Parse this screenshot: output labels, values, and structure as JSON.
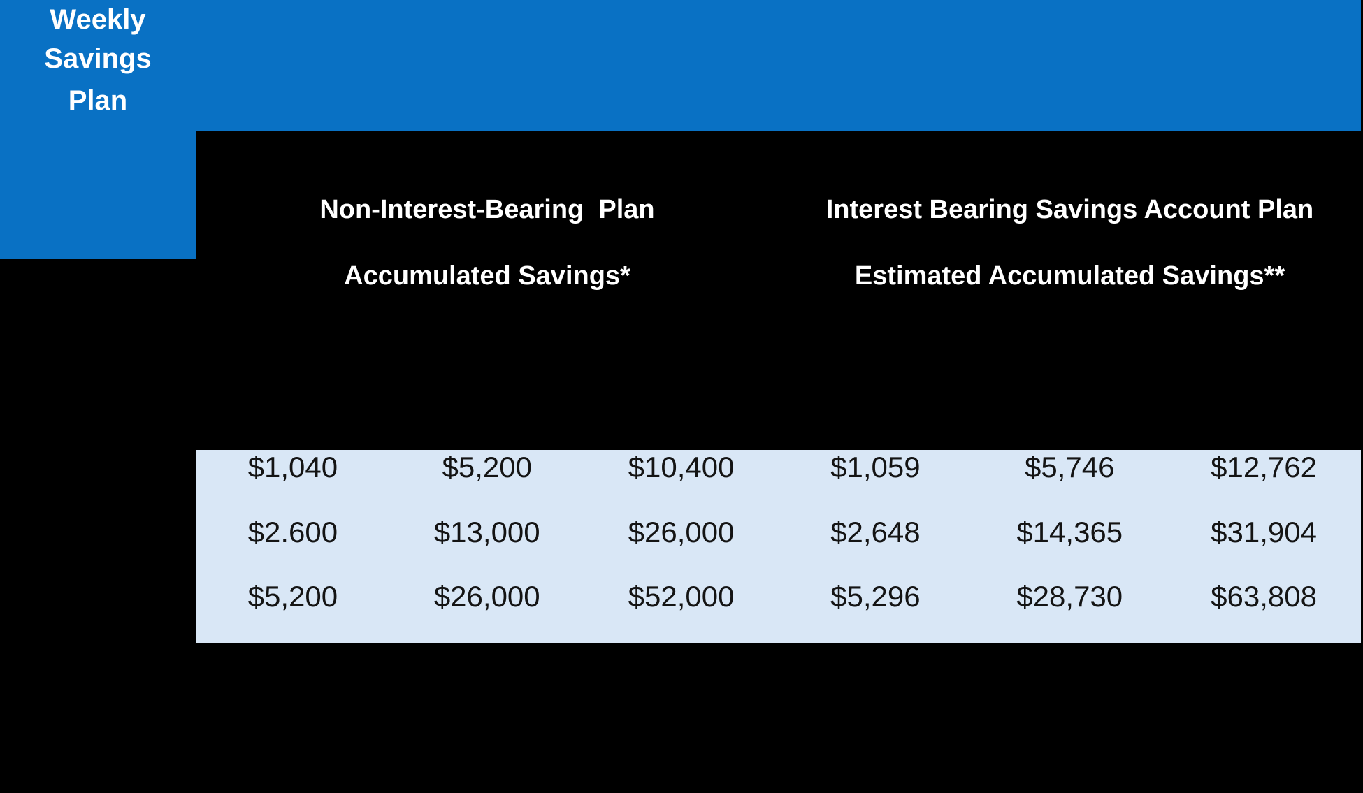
{
  "table": {
    "corner_header": [
      "Weekly",
      "Savings",
      "Plan"
    ],
    "group_headers": [
      {
        "line1": "Non-Interest-Bearing  Plan",
        "line2": "Accumulated Savings*"
      },
      {
        "line1": "Interest Bearing Savings Account Plan",
        "line2": "Estimated Accumulated Savings**"
      }
    ],
    "rows": [
      [
        "$1,040",
        "$5,200",
        "$10,400",
        "$1,059",
        "$5,746",
        "$12,762"
      ],
      [
        "$2.600",
        "$13,000",
        "$26,000",
        "$2,648",
        "$14,365",
        "$31,904"
      ],
      [
        "$5,200",
        "$26,000",
        "$52,000",
        "$5,296",
        "$28,730",
        "$63,808"
      ]
    ],
    "colors": {
      "header_bg": "#0971C4",
      "data_bg": "#D9E7F6",
      "header_text": "#FFFFFF",
      "data_text": "#141414",
      "page_bg": "#000000"
    }
  },
  "chart_data": {
    "type": "table",
    "title": "",
    "corner_header": "Weekly Savings Plan",
    "column_group_headers": [
      "Non-Interest-Bearing Plan / Accumulated Savings*",
      "Interest Bearing Savings Account Plan / Estimated Accumulated Savings**"
    ],
    "rows": [
      [
        1040,
        5200,
        10400,
        1059,
        5746,
        12762
      ],
      [
        2600,
        13000,
        26000,
        2648,
        14365,
        31904
      ],
      [
        5200,
        26000,
        52000,
        5296,
        28730,
        63808
      ]
    ],
    "row_values_display": [
      [
        "$1,040",
        "$5,200",
        "$10,400",
        "$1,059",
        "$5,746",
        "$12,762"
      ],
      [
        "$2.600",
        "$13,000",
        "$26,000",
        "$2,648",
        "$14,365",
        "$31,904"
      ],
      [
        "$5,200",
        "$26,000",
        "$52,000",
        "$5,296",
        "$28,730",
        "$63,808"
      ]
    ],
    "layout_hints": {
      "header_bg": "#0971C4",
      "data_bg": "#D9E7F6",
      "background": "#000000",
      "columns": 6,
      "grid": "off"
    }
  }
}
